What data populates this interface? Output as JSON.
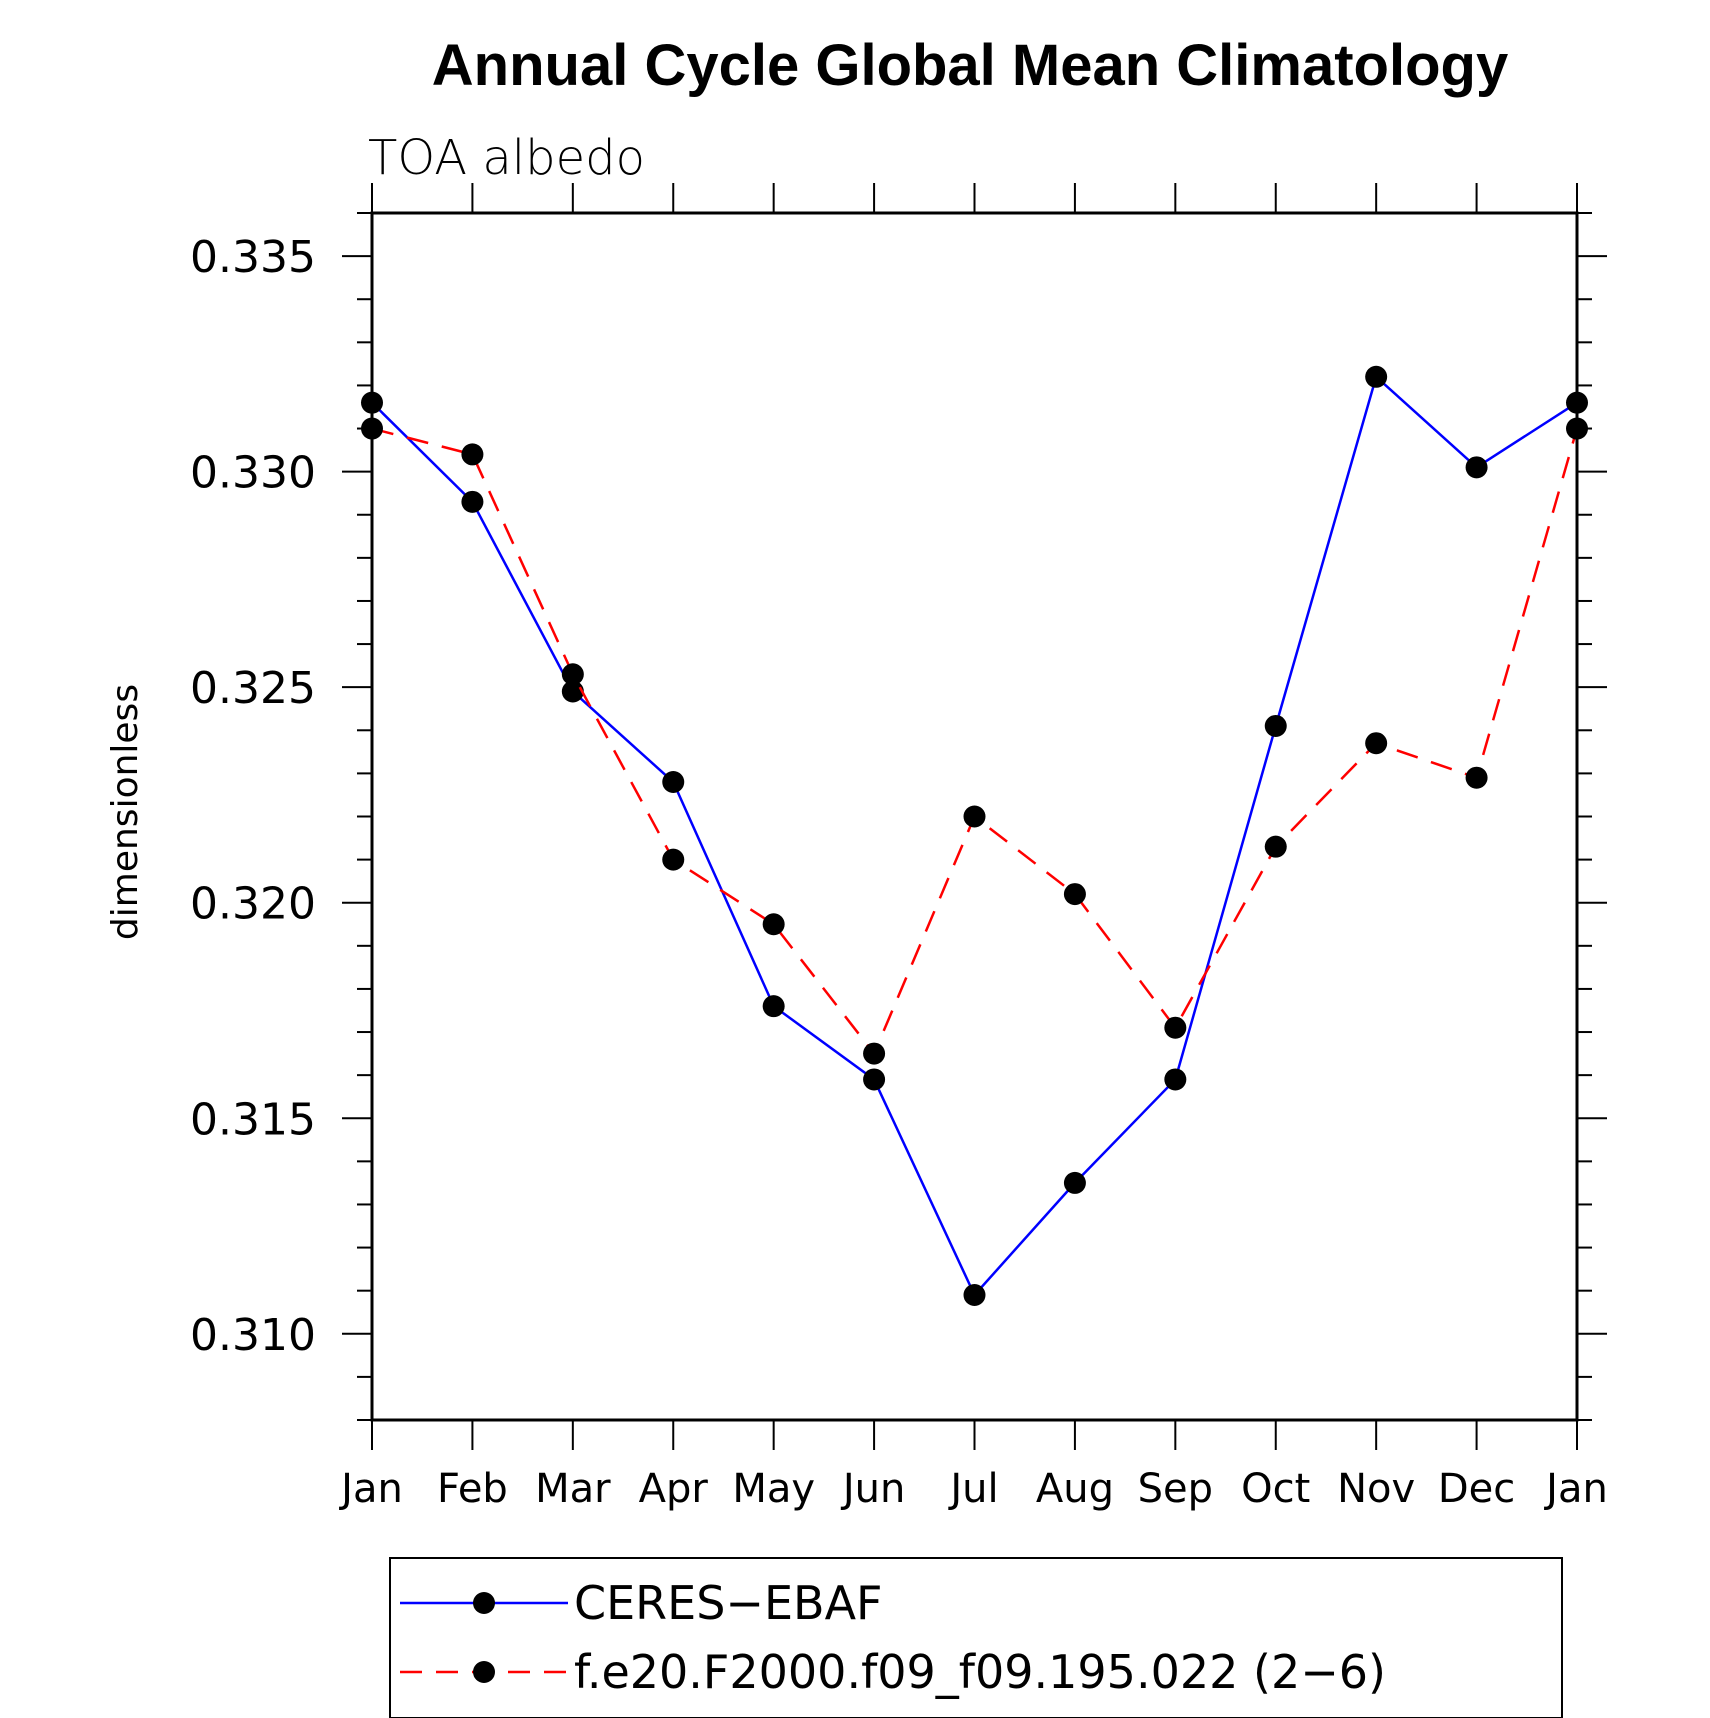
{
  "chart_data": {
    "type": "line",
    "title": "Annual Cycle Global Mean Climatology",
    "subtitle": "TOA albedo",
    "ylabel": "dimensionless",
    "xlabel": "",
    "categories": [
      "Jan",
      "Feb",
      "Mar",
      "Apr",
      "May",
      "Jun",
      "Jul",
      "Aug",
      "Sep",
      "Oct",
      "Nov",
      "Dec",
      "Jan"
    ],
    "ylim": [
      0.308,
      0.336
    ],
    "yticks": [
      0.31,
      0.315,
      0.32,
      0.325,
      0.33,
      0.335
    ],
    "ytick_labels": [
      "0.310",
      "0.315",
      "0.320",
      "0.325",
      "0.330",
      "0.335"
    ],
    "legend_position": "bottom",
    "series": [
      {
        "name": "CERES−EBAF",
        "color": "#0000ff",
        "line_style": "solid",
        "marker": "circle",
        "values": [
          0.3316,
          0.3293,
          0.3249,
          0.3228,
          0.3176,
          0.3159,
          0.3109,
          0.3135,
          0.3159,
          0.3241,
          0.3322,
          0.3301,
          0.3316
        ]
      },
      {
        "name": "f.e20.F2000.f09_f09.195.022 (2−6)",
        "color": "#ff0000",
        "line_style": "dashed",
        "marker": "circle",
        "values": [
          0.331,
          0.3304,
          0.3253,
          0.321,
          0.3195,
          0.3165,
          0.322,
          0.3202,
          0.3171,
          0.3213,
          0.3237,
          0.3229,
          0.331
        ]
      }
    ]
  }
}
